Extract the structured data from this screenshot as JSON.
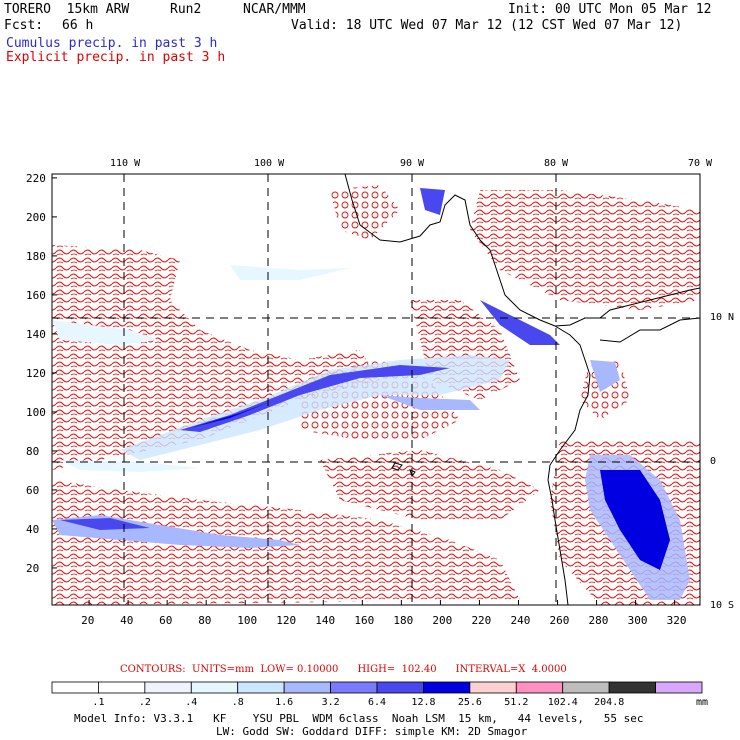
{
  "header": {
    "model": "TORERO  15km ARW",
    "run": "Run2",
    "center": "NCAR/MMM",
    "init": "Init: 00 UTC Mon 05 Mar 12",
    "fcst_label": "Fcst:",
    "fcst_value": "66 h",
    "valid": "Valid: 18 UTC Wed 07 Mar 12 (12 CST Wed 07 Mar 12)",
    "field1": "Cumulus precip. in past 3 h",
    "field2": "Explicit precip. in past 3 h",
    "field1_color": "#2b2bd0",
    "field2_color": "#e00000"
  },
  "map": {
    "lon_labels": [
      "110 W",
      "100 W",
      "90 W",
      "80 W",
      "70 W"
    ],
    "lat_labels": [
      "10 N",
      "0",
      "10 S"
    ],
    "x_ticks": [
      "20",
      "40",
      "60",
      "80",
      "100",
      "120",
      "140",
      "160",
      "180",
      "200",
      "220",
      "240",
      "260",
      "280",
      "300",
      "320"
    ],
    "y_ticks": [
      "20",
      "40",
      "60",
      "80",
      "100",
      "120",
      "140",
      "160",
      "180",
      "200",
      "220"
    ]
  },
  "contours": {
    "label": "CONTOURS:  UNITS=mm  LOW= 0.10000      HIGH=  102.40      INTERVAL=X  4.0000"
  },
  "colorbar": {
    "labels": [
      ".1",
      ".2",
      ".4",
      ".8",
      "1.6",
      "3.2",
      "6.4",
      "12.8",
      "25.6",
      "51.2",
      "102.4",
      "204.8"
    ],
    "unit": "mm",
    "colors": [
      "#ffffff",
      "#ffffff",
      "#f2f2ff",
      "#e6f7ff",
      "#cce6ff",
      "#a8b8ff",
      "#7a7aff",
      "#4848ee",
      "#0000e0",
      "#ffd0d0",
      "#ff90c0",
      "#bdbdbd",
      "#333333",
      "#d8a8ff"
    ]
  },
  "footer": {
    "line1": "Model Info: V3.3.1   KF    YSU PBL  WDM 6class  Noah LSM  15 km,   44 levels,   55 sec",
    "line2": "LW: Godd SW: Goddard DIFF: simple KM: 2D Smagor"
  }
}
